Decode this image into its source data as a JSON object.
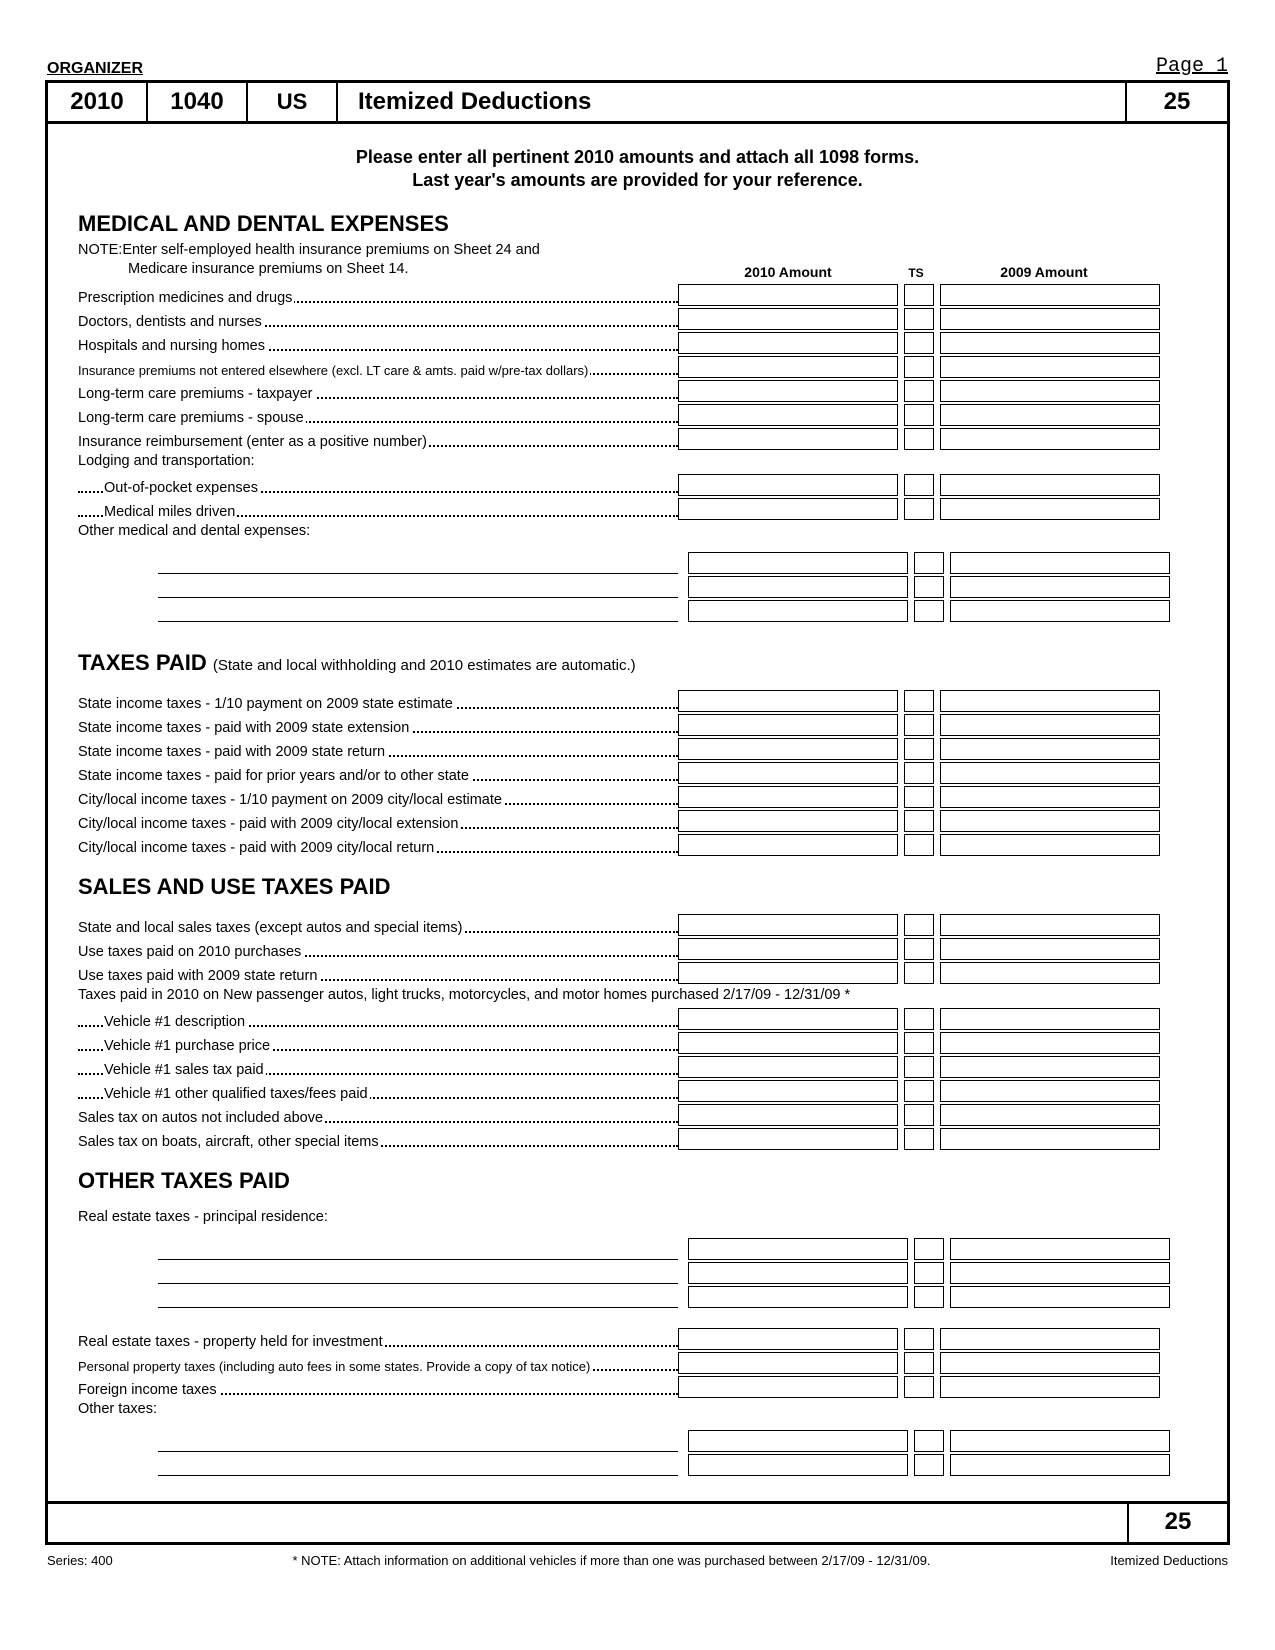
{
  "meta": {
    "organizer_label": "ORGANIZER",
    "page_label": "Page 1",
    "year": "2010",
    "form": "1040",
    "jurisdiction": "US",
    "title": "Itemized Deductions",
    "page_code": "25",
    "series": "Series: 400",
    "footnote": "* NOTE: Attach information on additional vehicles if more than one was purchased between 2/17/09 - 12/31/09.",
    "footer_right": "Itemized Deductions"
  },
  "instructions": {
    "line1": "Please enter all pertinent 2010 amounts and attach all 1098 forms.",
    "line2": "Last year's amounts are provided for your reference."
  },
  "column_headers": {
    "amount_current": "2010 Amount",
    "ts": "TS",
    "amount_prior": "2009 Amount"
  },
  "sections": {
    "medical": {
      "title": "MEDICAL AND DENTAL EXPENSES",
      "note_prefix": "NOTE:",
      "note_l1": "Enter self-employed health insurance premiums on Sheet 24 and",
      "note_l2": "Medicare insurance premiums on Sheet 14.",
      "lines": [
        "Prescription medicines and drugs",
        "Doctors, dentists and nurses",
        "Hospitals and nursing homes",
        "Insurance premiums not entered elsewhere (excl. LT care & amts. paid w/pre-tax dollars)",
        "Long-term care premiums - taxpayer",
        "Long-term care premiums - spouse",
        "Insurance reimbursement (enter as a positive number)"
      ],
      "lodging_header": "Lodging and transportation:",
      "lodging_lines": [
        "Out-of-pocket expenses",
        "Medical miles driven"
      ],
      "other_header": "Other medical and dental expenses:"
    },
    "taxes_paid": {
      "title": "TAXES PAID",
      "subtext": "(State and local withholding and 2010 estimates are automatic.)",
      "lines": [
        "State income taxes - 1/10 payment on 2009 state estimate",
        "State income taxes - paid with 2009 state extension",
        "State income taxes - paid with 2009 state return",
        "State income taxes - paid for prior years and/or to other state",
        "City/local income taxes - 1/10 payment on 2009 city/local estimate",
        "City/local income taxes - paid with 2009 city/local extension",
        "City/local income taxes - paid with 2009 city/local return"
      ]
    },
    "sales": {
      "title": "SALES AND USE TAXES PAID",
      "lines_a": [
        "State and local sales taxes (except autos and special items)",
        "Use taxes paid on 2010 purchases",
        "Use taxes paid with 2009 state return"
      ],
      "vehicle_header": "Taxes paid in 2010 on New passenger autos, light trucks, motorcycles, and motor homes purchased 2/17/09 - 12/31/09 *",
      "vehicle_lines": [
        "Vehicle #1 description",
        "Vehicle #1 purchase price",
        "Vehicle #1 sales tax paid",
        "Vehicle #1 other qualified taxes/fees paid"
      ],
      "lines_b": [
        "Sales tax on autos not included above",
        "Sales tax on boats, aircraft, other special items"
      ]
    },
    "other": {
      "title": "OTHER TAXES PAID",
      "re_header": "Real estate taxes - principal residence:",
      "lines": [
        "Real estate taxes - property held for investment",
        "Personal property taxes (including auto fees in some states. Provide a copy of tax notice)",
        "Foreign income taxes"
      ],
      "other_header": "Other taxes:"
    }
  }
}
